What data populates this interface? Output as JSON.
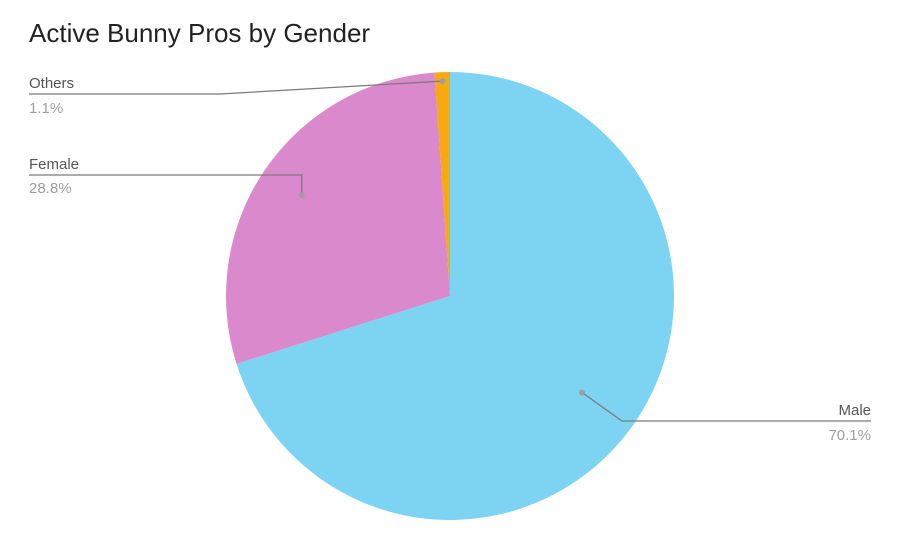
{
  "chart_data": {
    "type": "pie",
    "title": "Active Bunny Pros by Gender",
    "slices": [
      {
        "label": "Male",
        "value": 70.1,
        "percent_label": "70.1%",
        "color": "#7dd4f2"
      },
      {
        "label": "Female",
        "value": 28.8,
        "percent_label": "28.8%",
        "color": "#da8acc"
      },
      {
        "label": "Others",
        "value": 1.1,
        "percent_label": "1.1%",
        "color": "#f7a90f"
      }
    ],
    "start_angle_deg": 0,
    "direction": "clockwise",
    "legend": "none"
  }
}
